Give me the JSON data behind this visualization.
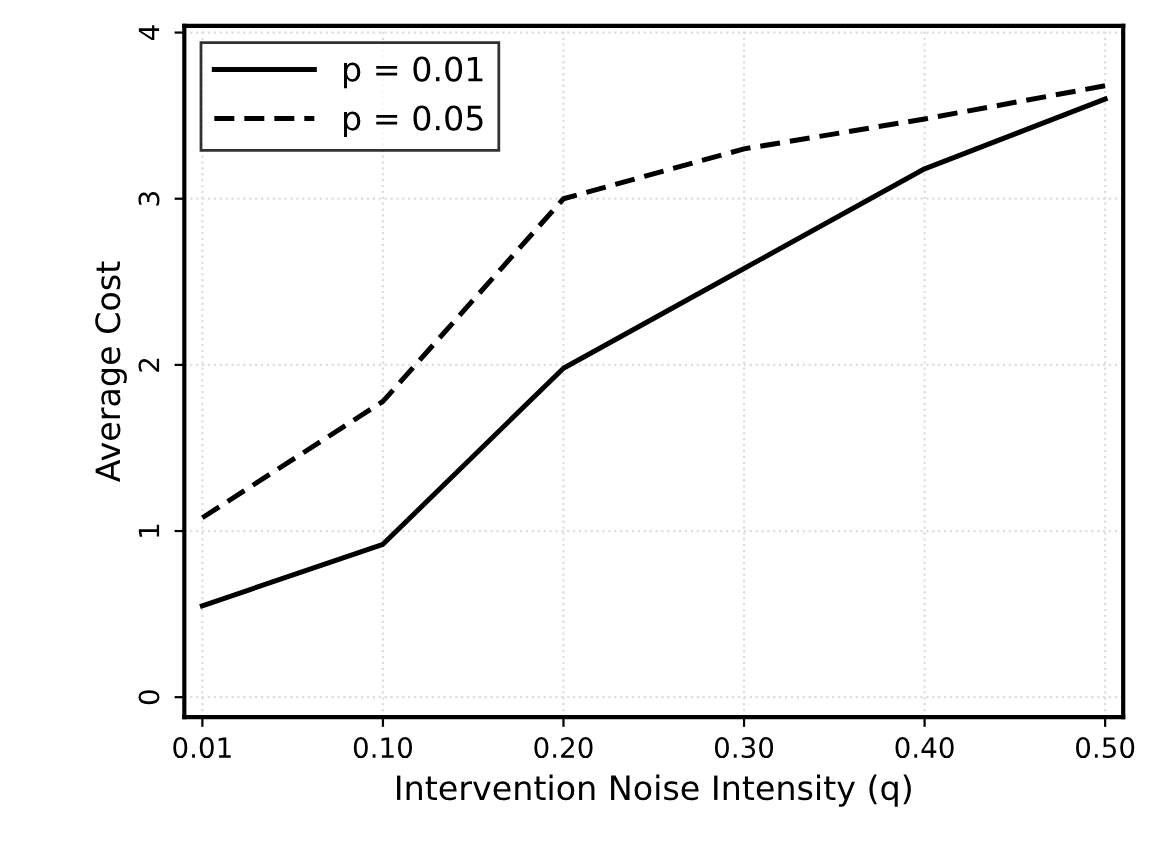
{
  "chart_data": {
    "type": "line",
    "xlabel": "Intervention Noise Intensity (q)",
    "ylabel": "Average Cost",
    "categories": [
      "0.01",
      "0.10",
      "0.20",
      "0.30",
      "0.40",
      "0.50"
    ],
    "series": [
      {
        "name": "p = 0.01",
        "color": "#000000",
        "line_style": "solid",
        "values": [
          0.55,
          0.92,
          1.98,
          2.58,
          3.18,
          3.6
        ]
      },
      {
        "name": "p = 0.05",
        "color": "#000000",
        "line_style": "dashed",
        "values": [
          1.08,
          1.78,
          3.0,
          3.3,
          3.48,
          3.68
        ]
      }
    ],
    "ylim": [
      -0.12,
      4.04
    ],
    "yticks": [
      0,
      1,
      2,
      3,
      4
    ],
    "grid": true,
    "legend": "top left",
    "marker": "none"
  }
}
